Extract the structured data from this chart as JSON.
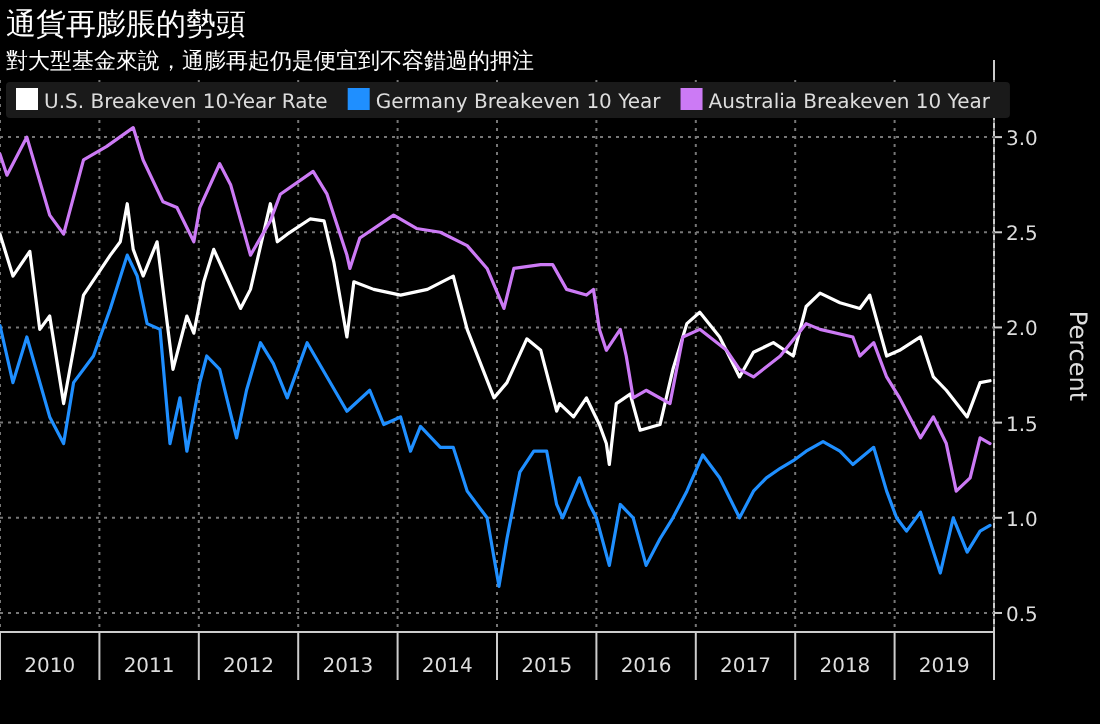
{
  "chart_data": {
    "type": "line",
    "title": "通貨再膨脹的勢頭",
    "subtitle": "對大型基金來說，通膨再起仍是便宜到不容錯過的押注",
    "ylabel": "Percent",
    "xlim": [
      2010,
      2020
    ],
    "ylim": [
      0.4,
      3.3
    ],
    "yticks": [
      {
        "value": 0.5,
        "label": "0.5"
      },
      {
        "value": 1,
        "label": "1.0"
      },
      {
        "value": 1.5,
        "label": "1.5"
      },
      {
        "value": 2,
        "label": "2.0"
      },
      {
        "value": 2.5,
        "label": "2.5"
      },
      {
        "value": 3,
        "label": "3.0"
      }
    ],
    "xticks": [
      {
        "value": 2010,
        "label": null
      },
      {
        "value": 2010.5,
        "label": "2010"
      },
      {
        "value": 2011,
        "label": null
      },
      {
        "value": 2011.5,
        "label": "2011"
      },
      {
        "value": 2012,
        "label": null
      },
      {
        "value": 2012.5,
        "label": "2012"
      },
      {
        "value": 2013,
        "label": null
      },
      {
        "value": 2013.5,
        "label": "2013"
      },
      {
        "value": 2014,
        "label": null
      },
      {
        "value": 2014.5,
        "label": "2014"
      },
      {
        "value": 2015,
        "label": null
      },
      {
        "value": 2015.5,
        "label": "2015"
      },
      {
        "value": 2016,
        "label": null
      },
      {
        "value": 2016.5,
        "label": "2016"
      },
      {
        "value": 2017,
        "label": null
      },
      {
        "value": 2017.5,
        "label": "2017"
      },
      {
        "value": 2018,
        "label": null
      },
      {
        "value": 2018.5,
        "label": "2018"
      },
      {
        "value": 2019,
        "label": null
      },
      {
        "value": 2019.5,
        "label": "2019"
      },
      {
        "value": 2020,
        "label": null
      }
    ],
    "grid": true,
    "legend": "top",
    "marker": "none",
    "line_style": "solid",
    "series": [
      {
        "name": "U.S. Breakeven 10-Year Rate",
        "color": "#ffffff",
        "x": [
          2010.0,
          2010.13,
          2010.3,
          2010.4,
          2010.5,
          2010.64,
          2010.84,
          2011.11,
          2011.21,
          2011.28,
          2011.34,
          2011.44,
          2011.58,
          2011.74,
          2011.88,
          2011.95,
          2012.05,
          2012.15,
          2012.42,
          2012.52,
          2012.72,
          2012.79,
          2012.89,
          2013.12,
          2013.26,
          2013.36,
          2013.49,
          2013.56,
          2013.76,
          2014.03,
          2014.3,
          2014.56,
          2014.7,
          2014.97,
          2015.1,
          2015.3,
          2015.44,
          2015.6,
          2015.63,
          2015.77,
          2015.9,
          2016.03,
          2016.1,
          2016.13,
          2016.2,
          2016.34,
          2016.44,
          2016.64,
          2016.77,
          2016.91,
          2017.04,
          2017.24,
          2017.44,
          2017.58,
          2017.78,
          2017.98,
          2018.11,
          2018.25,
          2018.45,
          2018.65,
          2018.75,
          2018.92,
          2019.05,
          2019.26,
          2019.39,
          2019.52,
          2019.73,
          2019.86,
          2019.96
        ],
        "values": [
          2.49,
          2.27,
          2.4,
          1.99,
          2.06,
          1.6,
          2.17,
          2.38,
          2.45,
          2.65,
          2.41,
          2.27,
          2.45,
          1.78,
          2.06,
          1.97,
          2.24,
          2.41,
          2.1,
          2.2,
          2.65,
          2.45,
          2.49,
          2.57,
          2.56,
          2.34,
          1.95,
          2.24,
          2.2,
          2.17,
          2.2,
          2.27,
          1.99,
          1.63,
          1.71,
          1.94,
          1.88,
          1.56,
          1.6,
          1.53,
          1.63,
          1.49,
          1.39,
          1.28,
          1.6,
          1.65,
          1.46,
          1.49,
          1.78,
          2.02,
          2.08,
          1.95,
          1.74,
          1.87,
          1.92,
          1.85,
          2.11,
          2.18,
          2.13,
          2.1,
          2.17,
          1.85,
          1.88,
          1.95,
          1.74,
          1.67,
          1.53,
          1.71,
          1.72
        ]
      },
      {
        "name": "Germany Breakeven 10 Year",
        "color": "#1f8fff",
        "x": [
          2010.0,
          2010.13,
          2010.27,
          2010.5,
          2010.64,
          2010.74,
          2010.94,
          2011.11,
          2011.28,
          2011.38,
          2011.48,
          2011.61,
          2011.71,
          2011.81,
          2011.88,
          2012.01,
          2012.08,
          2012.21,
          2012.38,
          2012.48,
          2012.62,
          2012.75,
          2012.89,
          2013.09,
          2013.29,
          2013.49,
          2013.72,
          2013.86,
          2014.03,
          2014.13,
          2014.23,
          2014.43,
          2014.56,
          2014.7,
          2014.9,
          2015.02,
          2015.1,
          2015.23,
          2015.37,
          2015.5,
          2015.6,
          2015.66,
          2015.83,
          2015.93,
          2016.0,
          2016.13,
          2016.24,
          2016.37,
          2016.5,
          2016.64,
          2016.77,
          2016.91,
          2017.07,
          2017.24,
          2017.44,
          2017.58,
          2017.71,
          2017.85,
          2017.98,
          2018.11,
          2018.28,
          2018.45,
          2018.58,
          2018.79,
          2018.92,
          2019.02,
          2019.12,
          2019.26,
          2019.46,
          2019.59,
          2019.73,
          2019.86,
          2019.96
        ],
        "values": [
          2.01,
          1.71,
          1.95,
          1.53,
          1.39,
          1.71,
          1.85,
          2.1,
          2.38,
          2.27,
          2.02,
          1.99,
          1.39,
          1.63,
          1.35,
          1.71,
          1.85,
          1.78,
          1.42,
          1.67,
          1.92,
          1.81,
          1.63,
          1.92,
          1.74,
          1.56,
          1.67,
          1.49,
          1.53,
          1.35,
          1.48,
          1.37,
          1.37,
          1.14,
          1.0,
          0.64,
          0.89,
          1.24,
          1.35,
          1.35,
          1.07,
          1.0,
          1.21,
          1.07,
          1.0,
          0.75,
          1.07,
          1.0,
          0.75,
          0.89,
          1.0,
          1.14,
          1.33,
          1.21,
          1.0,
          1.14,
          1.21,
          1.26,
          1.3,
          1.35,
          1.4,
          1.35,
          1.28,
          1.37,
          1.14,
          1.0,
          0.93,
          1.03,
          0.71,
          1.0,
          0.82,
          0.93,
          0.96
        ]
      },
      {
        "name": "Australia Breakeven 10 Year",
        "color": "#cc7af5",
        "x": [
          2010.0,
          2010.07,
          2010.27,
          2010.5,
          2010.64,
          2010.84,
          2011.07,
          2011.34,
          2011.44,
          2011.64,
          2011.78,
          2011.95,
          2012.01,
          2012.21,
          2012.32,
          2012.52,
          2012.72,
          2012.82,
          2013.15,
          2013.29,
          2013.49,
          2013.52,
          2013.62,
          2013.96,
          2014.19,
          2014.43,
          2014.7,
          2014.9,
          2015.07,
          2015.17,
          2015.44,
          2015.56,
          2015.7,
          2015.9,
          2015.97,
          2016.03,
          2016.1,
          2016.24,
          2016.3,
          2016.37,
          2016.5,
          2016.74,
          2016.87,
          2017.04,
          2017.31,
          2017.44,
          2017.58,
          2017.85,
          2018.11,
          2018.25,
          2018.58,
          2018.65,
          2018.79,
          2018.92,
          2019.05,
          2019.26,
          2019.39,
          2019.52,
          2019.62,
          2019.76,
          2019.86,
          2019.96
        ],
        "values": [
          2.91,
          2.8,
          3.0,
          2.59,
          2.49,
          2.88,
          2.95,
          3.05,
          2.88,
          2.66,
          2.63,
          2.45,
          2.63,
          2.86,
          2.75,
          2.38,
          2.56,
          2.7,
          2.82,
          2.7,
          2.38,
          2.31,
          2.47,
          2.59,
          2.52,
          2.5,
          2.43,
          2.31,
          2.1,
          2.31,
          2.33,
          2.33,
          2.2,
          2.17,
          2.2,
          1.99,
          1.88,
          1.99,
          1.85,
          1.63,
          1.67,
          1.6,
          1.95,
          1.99,
          1.88,
          1.78,
          1.74,
          1.85,
          2.02,
          1.99,
          1.95,
          1.85,
          1.92,
          1.74,
          1.63,
          1.42,
          1.53,
          1.39,
          1.14,
          1.21,
          1.42,
          1.39
        ]
      }
    ]
  }
}
